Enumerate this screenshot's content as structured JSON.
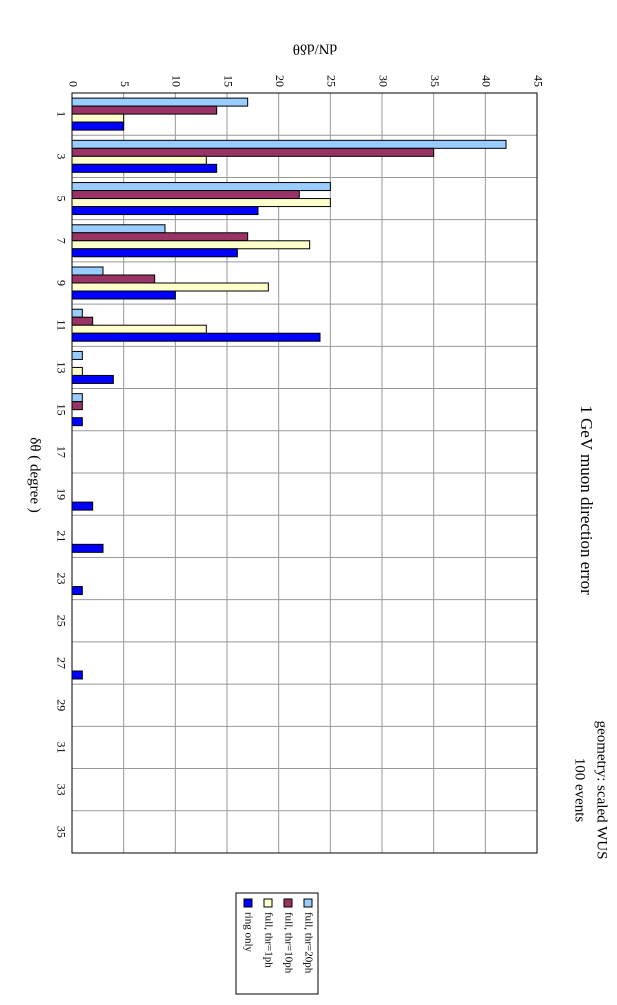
{
  "chart_data": {
    "type": "bar",
    "title": "1 GeV muon direction error",
    "annotations": [
      "geometry: scaled WUS",
      "100 events"
    ],
    "x_label": "δθ ( degree )",
    "y_label": "dN/dδθ",
    "categories": [
      "1",
      "3",
      "5",
      "7",
      "9",
      "11",
      "13",
      "15",
      "17",
      "19",
      "21",
      "23",
      "25",
      "27",
      "29",
      "31",
      "33",
      "35"
    ],
    "series": [
      {
        "name": "full, thr=20ph",
        "color": "#99ccff",
        "values": [
          17,
          42,
          25,
          9,
          3,
          1,
          1,
          1,
          0,
          0,
          0,
          0,
          0,
          0,
          0,
          0,
          0,
          0
        ]
      },
      {
        "name": "full, thr=10ph",
        "color": "#993366",
        "values": [
          14,
          35,
          22,
          17,
          8,
          2,
          0,
          1,
          0,
          0,
          0,
          0,
          0,
          0,
          0,
          0,
          0,
          0
        ]
      },
      {
        "name": "full, thr=1ph",
        "color": "#ffffcc",
        "values": [
          5,
          13,
          25,
          23,
          19,
          13,
          1,
          0,
          0,
          0,
          0,
          0,
          0,
          0,
          0,
          0,
          0,
          0
        ]
      },
      {
        "name": "ring only",
        "color": "#0000ff",
        "values": [
          5,
          14,
          18,
          16,
          10,
          24,
          4,
          1,
          0,
          2,
          3,
          1,
          0,
          1,
          0,
          0,
          0,
          0
        ]
      }
    ],
    "ylim": [
      0,
      45
    ],
    "yticks": [
      0,
      5,
      10,
      15,
      20,
      25,
      30,
      35,
      40,
      45
    ],
    "grid": true
  }
}
